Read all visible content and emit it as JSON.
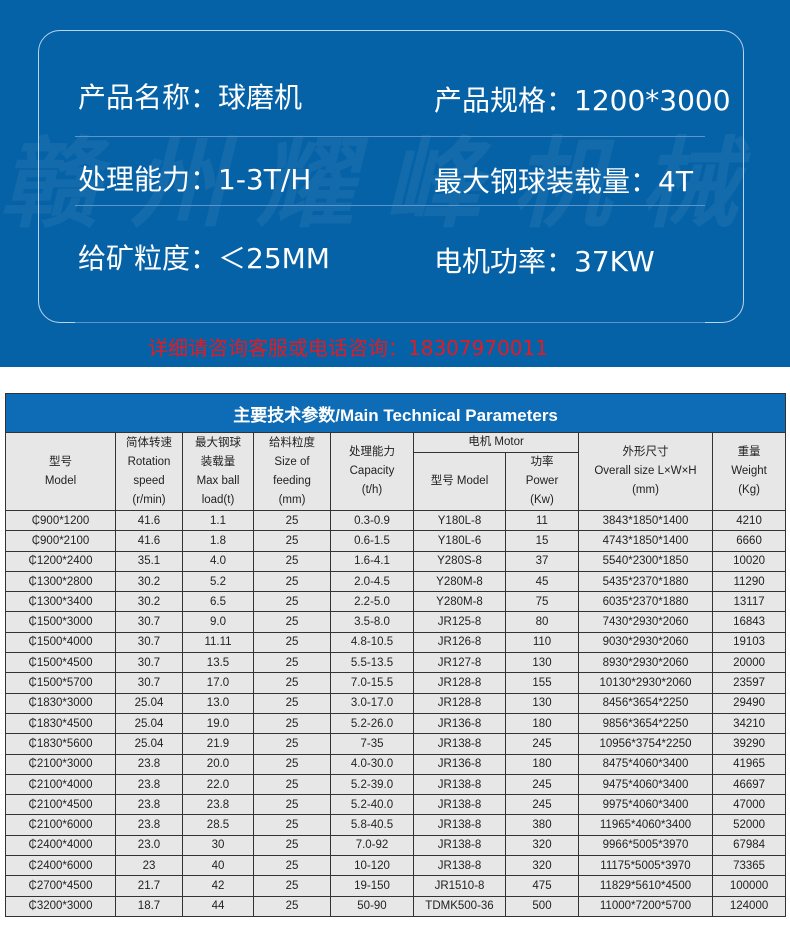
{
  "watermark": "赣州耀峰机械",
  "colors": {
    "banner": "#0662a7",
    "table_title": "#0e6bb5",
    "contact": "#e21b23"
  },
  "specs": [
    {
      "label": "产品名称：",
      "value": "球磨机"
    },
    {
      "label": "产品规格：",
      "value": "1200*3000"
    },
    {
      "label": "处理能力：",
      "value": "1-3T/H"
    },
    {
      "label": "最大钢球装载量：",
      "value": "4T"
    },
    {
      "label": "给矿粒度：",
      "value": "＜25MM"
    },
    {
      "label": "电机功率：",
      "value": "37KW"
    }
  ],
  "contact": "详细请咨询客服或电话咨询：18307970011",
  "table": {
    "title": "主要技术参数/Main Technical Parameters",
    "headers": {
      "model": [
        "型号",
        "Model"
      ],
      "speed": [
        "简体转速",
        "Rotation",
        "speed",
        "(r/min)"
      ],
      "ball": [
        "最大钢球",
        "装载量",
        "Max ball",
        "load(t)"
      ],
      "feed": [
        "给料粒度",
        "Size of",
        "feeding",
        "(mm)"
      ],
      "capacity": [
        "处理能力",
        "Capacity",
        "(t/h)"
      ],
      "motor": "电机 Motor",
      "motor_model": "型号 Model",
      "power": [
        "功率",
        "Power",
        "(Kw)"
      ],
      "size": [
        "外形尺寸",
        "Overall size L×W×H",
        "(mm)"
      ],
      "weight": [
        "重量",
        "Weight",
        "(Kg)"
      ]
    },
    "rows": [
      [
        "₵900*1200",
        "41.6",
        "1.1",
        "25",
        "0.3-0.9",
        "Y180L-8",
        "11",
        "3843*1850*1400",
        "4210"
      ],
      [
        "₵900*2100",
        "41.6",
        "1.8",
        "25",
        "0.6-1.5",
        "Y180L-6",
        "15",
        "4743*1850*1400",
        "6660"
      ],
      [
        "₵1200*2400",
        "35.1",
        "4.0",
        "25",
        "1.6-4.1",
        "Y280S-8",
        "37",
        "5540*2300*1850",
        "10020"
      ],
      [
        "₵1300*2800",
        "30.2",
        "5.2",
        "25",
        "2.0-4.5",
        "Y280M-8",
        "45",
        "5435*2370*1880",
        "11290"
      ],
      [
        "₵1300*3400",
        "30.2",
        "6.5",
        "25",
        "2.2-5.0",
        "Y280M-8",
        "75",
        "6035*2370*1880",
        "13117"
      ],
      [
        "₵1500*3000",
        "30.7",
        "9.0",
        "25",
        "3.5-8.0",
        "JR125-8",
        "80",
        "7430*2930*2060",
        "16843"
      ],
      [
        "₵1500*4000",
        "30.7",
        "11.11",
        "25",
        "4.8-10.5",
        "JR126-8",
        "110",
        "9030*2930*2060",
        "19103"
      ],
      [
        "₵1500*4500",
        "30.7",
        "13.5",
        "25",
        "5.5-13.5",
        "JR127-8",
        "130",
        "8930*2930*2060",
        "20000"
      ],
      [
        "₵1500*5700",
        "30.7",
        "17.0",
        "25",
        "7.0-15.5",
        "JR128-8",
        "155",
        "10130*2930*2060",
        "23597"
      ],
      [
        "₵1830*3000",
        "25.04",
        "13.0",
        "25",
        "3.0-17.0",
        "JR128-8",
        "130",
        "8456*3654*2250",
        "29490"
      ],
      [
        "₵1830*4500",
        "25.04",
        "19.0",
        "25",
        "5.2-26.0",
        "JR136-8",
        "180",
        "9856*3654*2250",
        "34210"
      ],
      [
        "₵1830*5600",
        "25.04",
        "21.9",
        "25",
        "7-35",
        "JR138-8",
        "245",
        "10956*3754*2250",
        "39290"
      ],
      [
        "₵2100*3000",
        "23.8",
        "20.0",
        "25",
        "4.0-30.0",
        "JR136-8",
        "180",
        "8475*4060*3400",
        "41965"
      ],
      [
        "₵2100*4000",
        "23.8",
        "22.0",
        "25",
        "5.2-39.0",
        "JR138-8",
        "245",
        "9475*4060*3400",
        "46697"
      ],
      [
        "₵2100*4500",
        "23.8",
        "23.8",
        "25",
        "5.2-40.0",
        "JR138-8",
        "245",
        "9975*4060*3400",
        "47000"
      ],
      [
        "₵2100*6000",
        "23.8",
        "28.5",
        "25",
        "5.8-40.5",
        "JR138-8",
        "380",
        "11965*4060*3400",
        "52000"
      ],
      [
        "₵2400*4000",
        "23.0",
        "30",
        "25",
        "7.0-92",
        "JR138-8",
        "320",
        "9966*5005*3970",
        "67984"
      ],
      [
        "₵2400*6000",
        "23",
        "40",
        "25",
        "10-120",
        "JR138-8",
        "320",
        "11175*5005*3970",
        "73365"
      ],
      [
        "₵2700*4500",
        "21.7",
        "42",
        "25",
        "19-150",
        "JR1510-8",
        "475",
        "11829*5610*4500",
        "100000"
      ],
      [
        "₵3200*3000",
        "18.7",
        "44",
        "25",
        "50-90",
        "TDMK500-36",
        "500",
        "11000*7200*5700",
        "124000"
      ]
    ]
  }
}
